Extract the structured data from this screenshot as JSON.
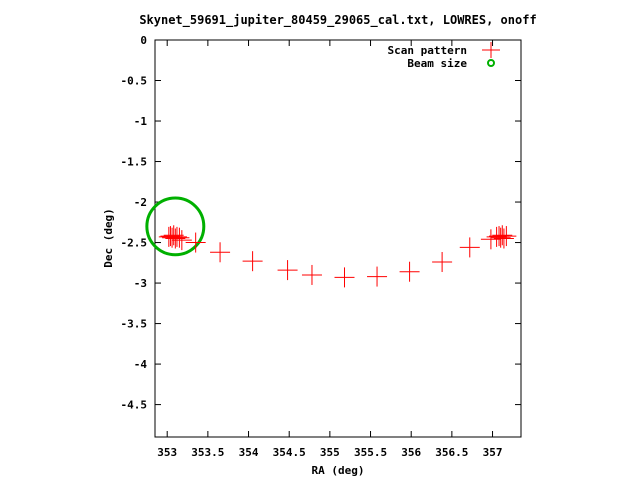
{
  "chart_data": {
    "type": "scatter",
    "title": "Skynet_59691_jupiter_80459_29065_cal.txt, LOWRES, onoff",
    "xlabel": "RA (deg)",
    "ylabel": "Dec (deg)",
    "xlim": [
      352.85,
      357.35
    ],
    "ylim": [
      -4.9,
      0
    ],
    "x_ticks": [
      353,
      353.5,
      354,
      354.5,
      355,
      355.5,
      356,
      356.5,
      357
    ],
    "x_tick_labels": [
      "353",
      "353.5",
      "354",
      "354.5",
      "355",
      "355.5",
      "356",
      "356.5",
      "357"
    ],
    "y_ticks": [
      0,
      -0.5,
      -1,
      -1.5,
      -2,
      -2.5,
      -3,
      -3.5,
      -4,
      -4.5
    ],
    "y_tick_labels": [
      "0",
      "-0.5",
      "-1",
      "-1.5",
      "-2",
      "-2.5",
      "-3",
      "-3.5",
      "-4",
      "-4.5"
    ],
    "grid": false,
    "legend_position": "top-right",
    "series": [
      {
        "name": "Scan pattern",
        "marker": "plus",
        "color": "#ff0000",
        "x": [
          353.02,
          353.04,
          353.06,
          353.08,
          353.1,
          353.12,
          353.15,
          353.18,
          353.35,
          353.65,
          354.05,
          354.48,
          354.78,
          355.18,
          355.58,
          355.98,
          356.38,
          356.72,
          356.98,
          357.05,
          357.08,
          357.1,
          357.12,
          357.14,
          357.17
        ],
        "y": [
          -2.43,
          -2.42,
          -2.44,
          -2.41,
          -2.45,
          -2.43,
          -2.44,
          -2.47,
          -2.5,
          -2.62,
          -2.73,
          -2.84,
          -2.9,
          -2.93,
          -2.92,
          -2.86,
          -2.74,
          -2.56,
          -2.46,
          -2.43,
          -2.42,
          -2.44,
          -2.41,
          -2.45,
          -2.42
        ]
      },
      {
        "name": "Beam size",
        "marker": "circle",
        "color": "#00b000",
        "center_x": 353.1,
        "center_y": -2.3,
        "radius_deg": 0.35
      }
    ]
  }
}
